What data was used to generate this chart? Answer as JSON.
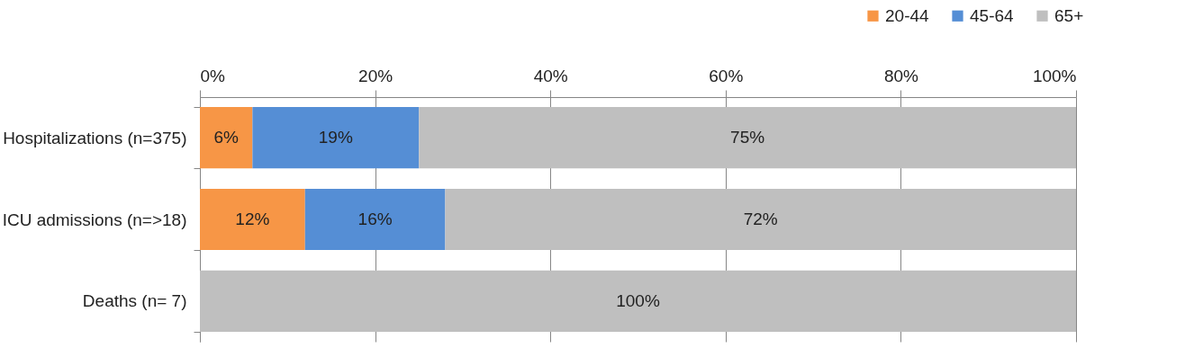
{
  "chart_data": {
    "type": "bar",
    "orientation": "horizontal",
    "stacked": true,
    "categories": [
      "Hospitalizations (n=375)",
      "ICU admissions (n=>18)",
      "Deaths (n= 7)"
    ],
    "series": [
      {
        "name": "20-44",
        "color": "#f79646",
        "values": [
          6,
          12,
          0
        ],
        "value_labels": [
          "6%",
          "12%",
          null
        ]
      },
      {
        "name": "45-64",
        "color": "#558ed5",
        "values": [
          19,
          16,
          0
        ],
        "value_labels": [
          "19%",
          "16%",
          null
        ]
      },
      {
        "name": "65+",
        "color": "#bfbfbf",
        "values": [
          75,
          72,
          100
        ],
        "value_labels": [
          "75%",
          "72%",
          "100%"
        ]
      }
    ],
    "xlim": [
      0,
      100
    ],
    "xticks": [
      {
        "value": 0,
        "label": "0%"
      },
      {
        "value": 20,
        "label": "20%"
      },
      {
        "value": 40,
        "label": "40%"
      },
      {
        "value": 60,
        "label": "60%"
      },
      {
        "value": 80,
        "label": "80%"
      },
      {
        "value": 100,
        "label": "100%"
      }
    ],
    "grid": "x",
    "legend": "top right"
  }
}
